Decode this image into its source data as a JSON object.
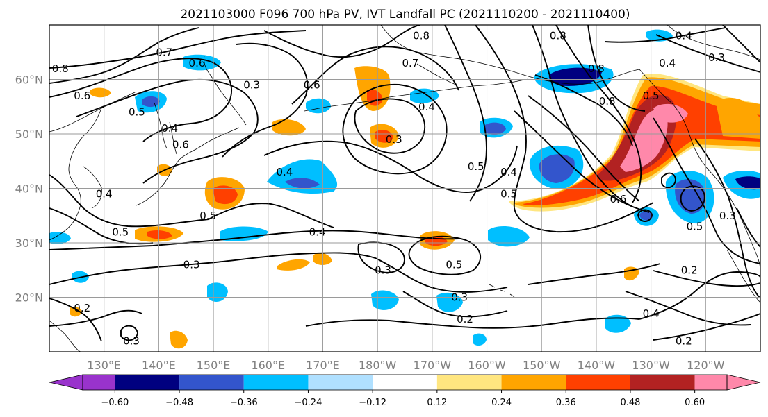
{
  "title": "2021103000 F096 700 hPa PV, IVT Landfall PC (2021110200 - 2021110400)",
  "lat_labels": [
    "60°N",
    "50°N",
    "40°N",
    "30°N",
    "20°N"
  ],
  "lon_labels": [
    "130°E",
    "140°E",
    "150°E",
    "160°E",
    "170°E",
    "180°W",
    "170°W",
    "160°W",
    "150°W",
    "140°W",
    "130°W",
    "120°W"
  ],
  "colorbar": {
    "tick_labels": [
      "−0.60",
      "−0.48",
      "−0.36",
      "−0.24",
      "−0.12",
      "0.12",
      "0.24",
      "0.36",
      "0.48",
      "0.60"
    ],
    "colors": [
      "#9933cc",
      "#000080",
      "#3355cc",
      "#00bfff",
      "#b0e0ff",
      "#ffffff",
      "#ffe680",
      "#ffa500",
      "#ff4000",
      "#b22222",
      "#ff88aa",
      "#ff88aa"
    ]
  },
  "contour_labels": [
    {
      "text": "0.8",
      "lon": 122,
      "lat": 62
    },
    {
      "text": "0.7",
      "lon": 141,
      "lat": 65
    },
    {
      "text": "0.6",
      "lon": 147,
      "lat": 63
    },
    {
      "text": "0.6",
      "lon": 126,
      "lat": 57
    },
    {
      "text": "0.5",
      "lon": 136,
      "lat": 54
    },
    {
      "text": "0.4",
      "lon": 142,
      "lat": 51
    },
    {
      "text": "0.6",
      "lon": 144,
      "lat": 48
    },
    {
      "text": "0.3",
      "lon": 157,
      "lat": 59
    },
    {
      "text": "0.6",
      "lon": 168,
      "lat": 59
    },
    {
      "text": "0.8",
      "lon": 188,
      "lat": 68
    },
    {
      "text": "0.7",
      "lon": 186,
      "lat": 63
    },
    {
      "text": "0.4",
      "lon": 189,
      "lat": 55
    },
    {
      "text": "0.3",
      "lon": 183,
      "lat": 49
    },
    {
      "text": "0.8",
      "lon": 213,
      "lat": 68
    },
    {
      "text": "0.8",
      "lon": 220,
      "lat": 62
    },
    {
      "text": "0.8",
      "lon": 222,
      "lat": 56
    },
    {
      "text": "0.5",
      "lon": 230,
      "lat": 57
    },
    {
      "text": "0.4",
      "lon": 236,
      "lat": 68
    },
    {
      "text": "0.3",
      "lon": 242,
      "lat": 64
    },
    {
      "text": "0.4",
      "lon": 233,
      "lat": 63
    },
    {
      "text": "0.4",
      "lon": 163,
      "lat": 43
    },
    {
      "text": "0.5",
      "lon": 149,
      "lat": 35
    },
    {
      "text": "0.4",
      "lon": 169,
      "lat": 32
    },
    {
      "text": "0.5",
      "lon": 198,
      "lat": 44
    },
    {
      "text": "0.4",
      "lon": 204,
      "lat": 43
    },
    {
      "text": "0.5",
      "lon": 204,
      "lat": 39
    },
    {
      "text": "0.6",
      "lon": 224,
      "lat": 38
    },
    {
      "text": "0.5",
      "lon": 238,
      "lat": 33
    },
    {
      "text": "0.3",
      "lon": 244,
      "lat": 35
    },
    {
      "text": "0.5",
      "lon": 194,
      "lat": 26
    },
    {
      "text": "0.3",
      "lon": 181,
      "lat": 25
    },
    {
      "text": "0.3",
      "lon": 195,
      "lat": 20
    },
    {
      "text": "0.5",
      "lon": 133,
      "lat": 32
    },
    {
      "text": "0.3",
      "lon": 146,
      "lat": 26
    },
    {
      "text": "0.2",
      "lon": 196,
      "lat": 16
    },
    {
      "text": "0.2",
      "lon": 237,
      "lat": 25
    },
    {
      "text": "0.4",
      "lon": 230,
      "lat": 17
    },
    {
      "text": "0.2",
      "lon": 236,
      "lat": 12
    },
    {
      "text": "0.2",
      "lon": 126,
      "lat": 18
    },
    {
      "text": "0.3",
      "lon": 135,
      "lat": 12
    },
    {
      "text": "0.4",
      "lon": 130,
      "lat": 39
    }
  ]
}
